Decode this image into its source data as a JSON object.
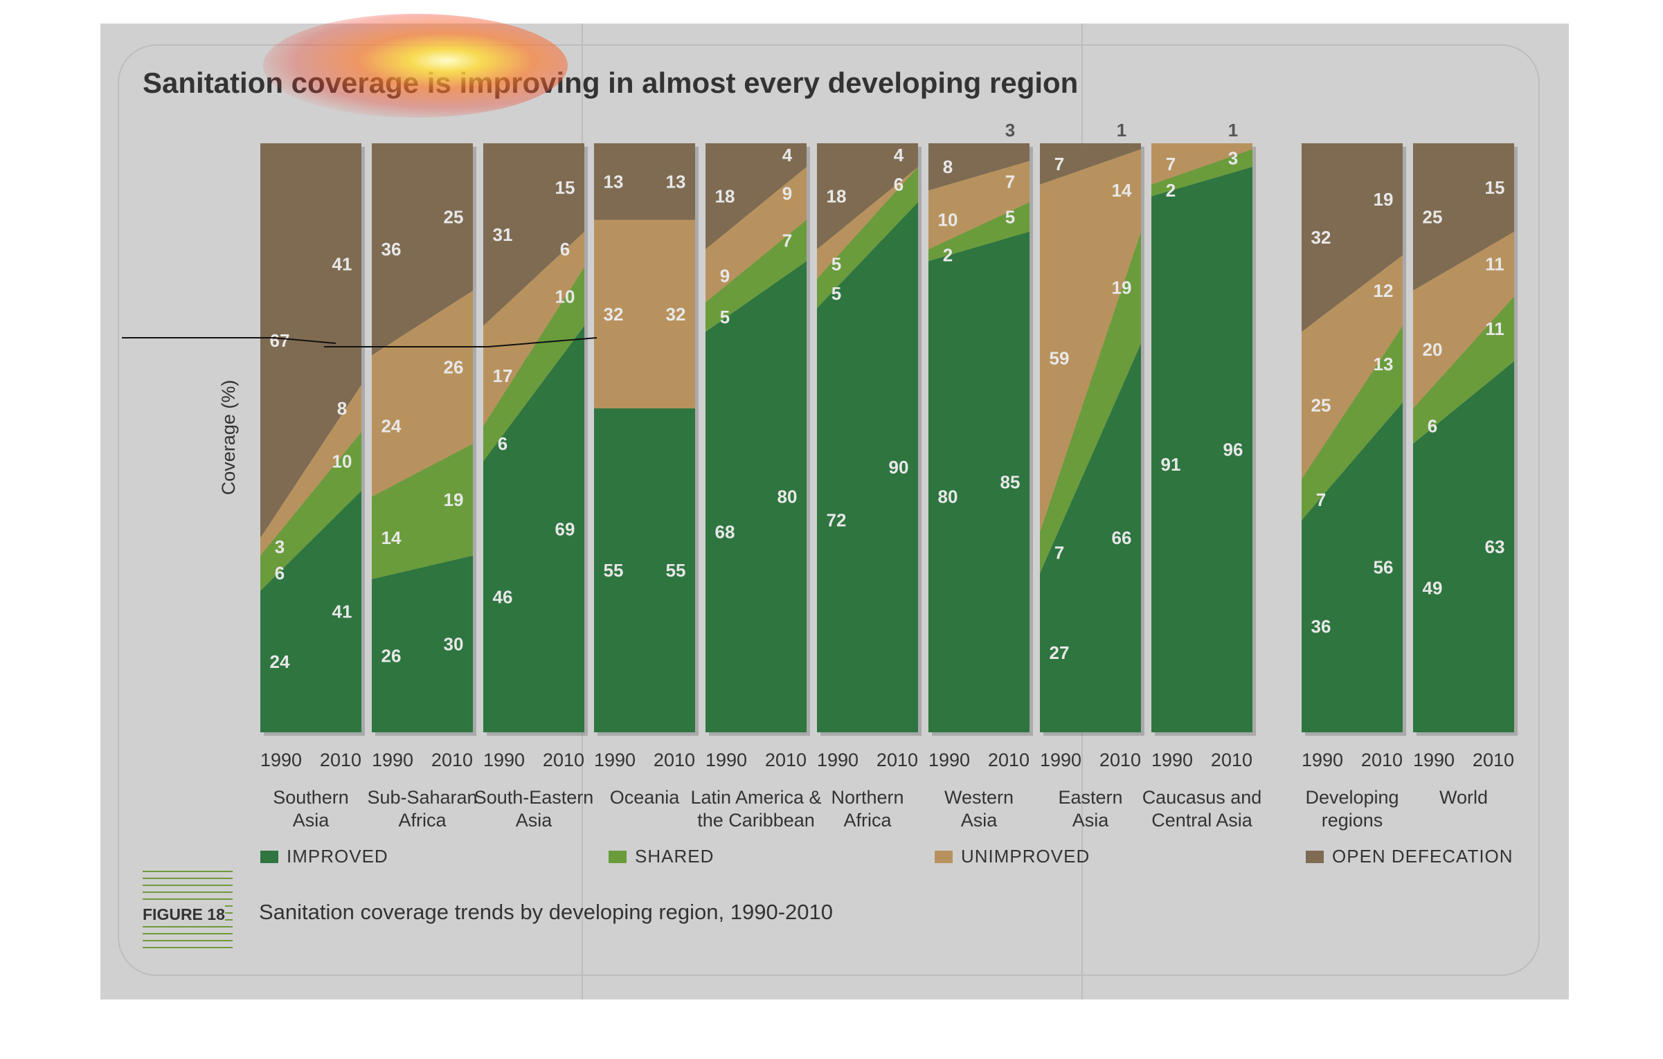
{
  "title": "Sanitation coverage is improving in almost every developing region",
  "figure": {
    "label": "FIGURE 18",
    "caption": "Sanitation coverage trends by developing region, 1990-2010"
  },
  "colors": {
    "improved": "#2e7540",
    "shared": "#6a9c3c",
    "unimproved": "#b8925e",
    "open_defecation": "#7e6b52",
    "panel": "#d0d0d0",
    "value_label": "#e8e8e8"
  },
  "legend": [
    {
      "key": "improved",
      "label": "IMPROVED"
    },
    {
      "key": "shared",
      "label": "SHARED"
    },
    {
      "key": "unimproved",
      "label": "UNIMPROVED"
    },
    {
      "key": "open_defecation",
      "label": "OPEN DEFECATION"
    }
  ],
  "chart_data": {
    "type": "area",
    "ylabel": "Coverage (%)",
    "ylim": [
      0,
      100
    ],
    "years": [
      "1990",
      "2010"
    ],
    "series_order": [
      "improved",
      "shared",
      "unimproved",
      "open_defecation"
    ],
    "regions": [
      {
        "name": "Southern Asia",
        "line1": "Southern",
        "line2": "Asia",
        "improved": [
          24,
          41
        ],
        "shared": [
          6,
          10
        ],
        "unimproved": [
          3,
          8
        ],
        "open_defecation": [
          67,
          41
        ]
      },
      {
        "name": "Sub-Saharan Africa",
        "line1": "Sub-Saharan",
        "line2": "Africa",
        "improved": [
          26,
          30
        ],
        "shared": [
          14,
          19
        ],
        "unimproved": [
          24,
          26
        ],
        "open_defecation": [
          36,
          25
        ]
      },
      {
        "name": "South-Eastern Asia",
        "line1": "South-Eastern",
        "line2": "Asia",
        "improved": [
          46,
          69
        ],
        "shared": [
          6,
          10
        ],
        "unimproved": [
          17,
          6
        ],
        "open_defecation": [
          31,
          15
        ]
      },
      {
        "name": "Oceania",
        "line1": "Oceania",
        "line2": "",
        "improved": [
          55,
          55
        ],
        "shared": [
          0,
          0
        ],
        "unimproved": [
          32,
          32
        ],
        "open_defecation": [
          13,
          13
        ]
      },
      {
        "name": "Latin America & the Caribbean",
        "line1": "Latin America &",
        "line2": "the Caribbean",
        "improved": [
          68,
          80
        ],
        "shared": [
          5,
          7
        ],
        "unimproved": [
          9,
          9
        ],
        "open_defecation": [
          18,
          4
        ]
      },
      {
        "name": "Northern Africa",
        "line1": "Northern",
        "line2": "Africa",
        "improved": [
          72,
          90
        ],
        "shared": [
          5,
          6
        ],
        "unimproved": [
          5,
          0
        ],
        "open_defecation": [
          18,
          4
        ]
      },
      {
        "name": "Western Asia",
        "line1": "Western",
        "line2": "Asia",
        "improved": [
          80,
          85
        ],
        "shared": [
          2,
          5
        ],
        "unimproved": [
          10,
          7
        ],
        "open_defecation": [
          8,
          3
        ]
      },
      {
        "name": "Eastern Asia",
        "line1": "Eastern",
        "line2": "Asia",
        "improved": [
          27,
          66
        ],
        "shared": [
          7,
          19
        ],
        "unimproved": [
          59,
          14
        ],
        "open_defecation": [
          7,
          1
        ]
      },
      {
        "name": "Caucasus and Central Asia",
        "line1": "Caucasus and",
        "line2": "Central Asia",
        "improved": [
          91,
          96
        ],
        "shared": [
          2,
          3
        ],
        "unimproved": [
          7,
          1
        ],
        "open_defecation": [
          0,
          0
        ]
      },
      {
        "name": "Developing regions",
        "line1": "Developing",
        "line2": "regions",
        "improved": [
          36,
          56
        ],
        "shared": [
          7,
          13
        ],
        "unimproved": [
          25,
          12
        ],
        "open_defecation": [
          32,
          19
        ]
      },
      {
        "name": "World",
        "line1": "World",
        "line2": "",
        "improved": [
          49,
          63
        ],
        "shared": [
          6,
          11
        ],
        "unimproved": [
          20,
          11
        ],
        "open_defecation": [
          25,
          15
        ]
      }
    ],
    "labels": [
      {
        "r": 0,
        "s": "improved",
        "y": 0,
        "t": "24"
      },
      {
        "r": 0,
        "s": "shared",
        "y": 0,
        "t": "6"
      },
      {
        "r": 0,
        "s": "unimproved",
        "y": 0,
        "t": "3"
      },
      {
        "r": 0,
        "s": "open_defecation",
        "y": 0,
        "t": "67"
      },
      {
        "r": 0,
        "s": "improved",
        "y": 1,
        "t": "41"
      },
      {
        "r": 0,
        "s": "shared",
        "y": 1,
        "t": "10"
      },
      {
        "r": 0,
        "s": "unimproved",
        "y": 1,
        "t": "8"
      },
      {
        "r": 0,
        "s": "open_defecation",
        "y": 1,
        "t": "41"
      },
      {
        "r": 1,
        "s": "improved",
        "y": 0,
        "t": "26"
      },
      {
        "r": 1,
        "s": "shared",
        "y": 0,
        "t": "14"
      },
      {
        "r": 1,
        "s": "unimproved",
        "y": 0,
        "t": "24"
      },
      {
        "r": 1,
        "s": "open_defecation",
        "y": 0,
        "t": "36"
      },
      {
        "r": 1,
        "s": "improved",
        "y": 1,
        "t": "30"
      },
      {
        "r": 1,
        "s": "shared",
        "y": 1,
        "t": "19"
      },
      {
        "r": 1,
        "s": "unimproved",
        "y": 1,
        "t": "26"
      },
      {
        "r": 1,
        "s": "open_defecation",
        "y": 1,
        "t": "25"
      },
      {
        "r": 2,
        "s": "improved",
        "y": 0,
        "t": "46"
      },
      {
        "r": 2,
        "s": "shared",
        "y": 0,
        "t": "6"
      },
      {
        "r": 2,
        "s": "unimproved",
        "y": 0,
        "t": "17"
      },
      {
        "r": 2,
        "s": "open_defecation",
        "y": 0,
        "t": "31"
      },
      {
        "r": 2,
        "s": "improved",
        "y": 1,
        "t": "69"
      },
      {
        "r": 2,
        "s": "shared",
        "y": 1,
        "t": "10"
      },
      {
        "r": 2,
        "s": "unimproved",
        "y": 1,
        "t": "6"
      },
      {
        "r": 2,
        "s": "open_defecation",
        "y": 1,
        "t": "15"
      },
      {
        "r": 3,
        "s": "improved",
        "y": 0,
        "t": "55"
      },
      {
        "r": 3,
        "s": "unimproved",
        "y": 0,
        "t": "32"
      },
      {
        "r": 3,
        "s": "open_defecation",
        "y": 0,
        "t": "13"
      },
      {
        "r": 3,
        "s": "improved",
        "y": 1,
        "t": "55"
      },
      {
        "r": 3,
        "s": "unimproved",
        "y": 1,
        "t": "32"
      },
      {
        "r": 3,
        "s": "open_defecation",
        "y": 1,
        "t": "13"
      },
      {
        "r": 4,
        "s": "improved",
        "y": 0,
        "t": "68"
      },
      {
        "r": 4,
        "s": "shared",
        "y": 0,
        "t": "5"
      },
      {
        "r": 4,
        "s": "unimproved",
        "y": 0,
        "t": "9"
      },
      {
        "r": 4,
        "s": "open_defecation",
        "y": 0,
        "t": "18"
      },
      {
        "r": 4,
        "s": "improved",
        "y": 1,
        "t": "80"
      },
      {
        "r": 4,
        "s": "shared",
        "y": 1,
        "t": "7"
      },
      {
        "r": 4,
        "s": "unimproved",
        "y": 1,
        "t": "9"
      },
      {
        "r": 4,
        "s": "open_defecation",
        "y": 1,
        "t": "4"
      },
      {
        "r": 5,
        "s": "improved",
        "y": 0,
        "t": "72"
      },
      {
        "r": 5,
        "s": "shared",
        "y": 0,
        "t": "5"
      },
      {
        "r": 5,
        "s": "unimproved",
        "y": 0,
        "t": "5"
      },
      {
        "r": 5,
        "s": "open_defecation",
        "y": 0,
        "t": "18"
      },
      {
        "r": 5,
        "s": "improved",
        "y": 1,
        "t": "90"
      },
      {
        "r": 5,
        "s": "shared",
        "y": 1,
        "t": "6"
      },
      {
        "r": 5,
        "s": "open_defecation",
        "y": 1,
        "t": "4"
      },
      {
        "r": 6,
        "s": "improved",
        "y": 0,
        "t": "80"
      },
      {
        "r": 6,
        "s": "shared",
        "y": 0,
        "t": "2"
      },
      {
        "r": 6,
        "s": "unimproved",
        "y": 0,
        "t": "10"
      },
      {
        "r": 6,
        "s": "open_defecation",
        "y": 0,
        "t": "8"
      },
      {
        "r": 6,
        "s": "improved",
        "y": 1,
        "t": "85"
      },
      {
        "r": 6,
        "s": "shared",
        "y": 1,
        "t": "5"
      },
      {
        "r": 6,
        "s": "unimproved",
        "y": 1,
        "t": "7"
      },
      {
        "r": 6,
        "s": "open_defecation",
        "y": 1,
        "t": "3",
        "above": true
      },
      {
        "r": 7,
        "s": "improved",
        "y": 0,
        "t": "27"
      },
      {
        "r": 7,
        "s": "shared",
        "y": 0,
        "t": "7"
      },
      {
        "r": 7,
        "s": "unimproved",
        "y": 0,
        "t": "59"
      },
      {
        "r": 7,
        "s": "open_defecation",
        "y": 0,
        "t": "7"
      },
      {
        "r": 7,
        "s": "improved",
        "y": 1,
        "t": "66"
      },
      {
        "r": 7,
        "s": "shared",
        "y": 1,
        "t": "19"
      },
      {
        "r": 7,
        "s": "unimproved",
        "y": 1,
        "t": "14"
      },
      {
        "r": 7,
        "s": "open_defecation",
        "y": 1,
        "t": "1",
        "above": true
      },
      {
        "r": 8,
        "s": "improved",
        "y": 0,
        "t": "91"
      },
      {
        "r": 8,
        "s": "shared",
        "y": 0,
        "t": "2"
      },
      {
        "r": 8,
        "s": "unimproved",
        "y": 0,
        "t": "7"
      },
      {
        "r": 8,
        "s": "improved",
        "y": 1,
        "t": "96"
      },
      {
        "r": 8,
        "s": "shared",
        "y": 1,
        "t": "3"
      },
      {
        "r": 8,
        "s": "unimproved",
        "y": 1,
        "t": "1",
        "above": true
      },
      {
        "r": 9,
        "s": "improved",
        "y": 0,
        "t": "36"
      },
      {
        "r": 9,
        "s": "shared",
        "y": 0,
        "t": "7"
      },
      {
        "r": 9,
        "s": "unimproved",
        "y": 0,
        "t": "25"
      },
      {
        "r": 9,
        "s": "open_defecation",
        "y": 0,
        "t": "32"
      },
      {
        "r": 9,
        "s": "improved",
        "y": 1,
        "t": "56"
      },
      {
        "r": 9,
        "s": "shared",
        "y": 1,
        "t": "13"
      },
      {
        "r": 9,
        "s": "unimproved",
        "y": 1,
        "t": "12"
      },
      {
        "r": 9,
        "s": "open_defecation",
        "y": 1,
        "t": "19"
      },
      {
        "r": 10,
        "s": "improved",
        "y": 0,
        "t": "49"
      },
      {
        "r": 10,
        "s": "shared",
        "y": 0,
        "t": "6"
      },
      {
        "r": 10,
        "s": "unimproved",
        "y": 0,
        "t": "20"
      },
      {
        "r": 10,
        "s": "open_defecation",
        "y": 0,
        "t": "25"
      },
      {
        "r": 10,
        "s": "improved",
        "y": 1,
        "t": "63"
      },
      {
        "r": 10,
        "s": "shared",
        "y": 1,
        "t": "11"
      },
      {
        "r": 10,
        "s": "unimproved",
        "y": 1,
        "t": "11"
      },
      {
        "r": 10,
        "s": "open_defecation",
        "y": 1,
        "t": "15"
      }
    ]
  }
}
